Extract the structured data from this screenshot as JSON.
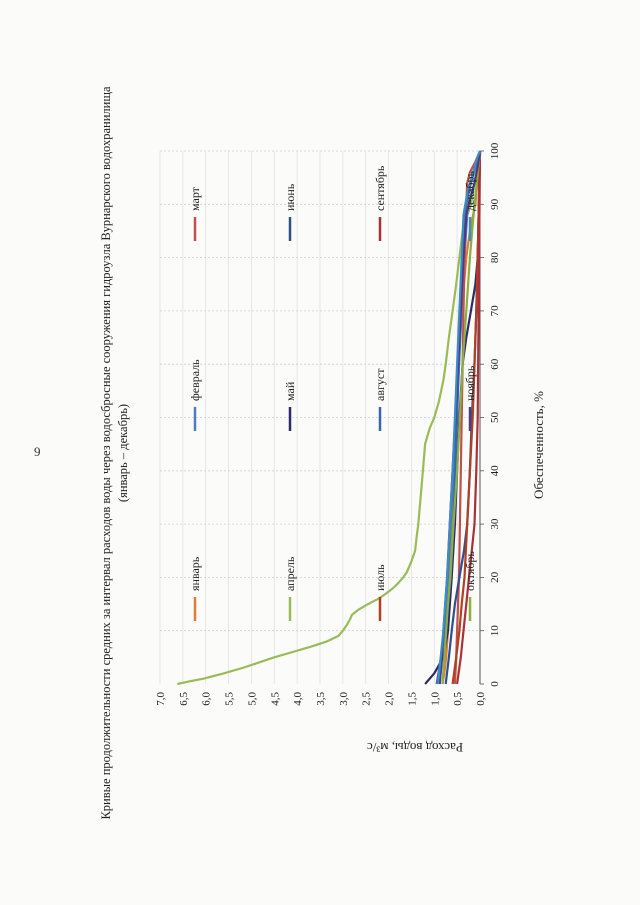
{
  "page": {
    "number": "9"
  },
  "chart_data": {
    "type": "line",
    "title": "Кривые продолжительности средних за интервал расходов воды через водосбросные сооружения гидроузла Вурнарского водохранилища",
    "subtitle": "(январь – декабрь)",
    "xlabel": "Обеспеченность, %",
    "ylabel": "Расход воды, м³/с",
    "xlim": [
      0,
      100
    ],
    "ylim": [
      0,
      7
    ],
    "x_ticks": [
      "0",
      "10",
      "20",
      "30",
      "40",
      "50",
      "60",
      "70",
      "80",
      "90",
      "100"
    ],
    "y_ticks": [
      "0,0",
      "0,5",
      "1,0",
      "1,5",
      "2,0",
      "2,5",
      "3,0",
      "3,5",
      "4,0",
      "4,5",
      "5,0",
      "5,5",
      "6,0",
      "6,5",
      "7,0"
    ],
    "grid": true,
    "legend_position": "top",
    "series": [
      {
        "name": "январь",
        "color": "#e07b39",
        "points": [
          [
            0,
            0.82
          ],
          [
            2,
            0.78
          ],
          [
            5,
            0.74
          ],
          [
            10,
            0.7
          ],
          [
            20,
            0.66
          ],
          [
            30,
            0.62
          ],
          [
            40,
            0.58
          ],
          [
            50,
            0.54
          ],
          [
            60,
            0.48
          ],
          [
            70,
            0.4
          ],
          [
            80,
            0.3
          ],
          [
            85,
            0.22
          ],
          [
            88,
            0.15
          ],
          [
            90,
            0.1
          ],
          [
            95,
            0.05
          ],
          [
            100,
            0
          ]
        ]
      },
      {
        "name": "февраль",
        "color": "#4a7ec2",
        "points": [
          [
            0,
            0.9
          ],
          [
            2,
            0.86
          ],
          [
            5,
            0.82
          ],
          [
            10,
            0.78
          ],
          [
            15,
            0.74
          ],
          [
            20,
            0.7
          ],
          [
            30,
            0.64
          ],
          [
            40,
            0.58
          ],
          [
            50,
            0.52
          ],
          [
            60,
            0.46
          ],
          [
            70,
            0.4
          ],
          [
            80,
            0.34
          ],
          [
            88,
            0.28
          ],
          [
            90,
            0.2
          ],
          [
            95,
            0.1
          ],
          [
            100,
            0
          ]
        ]
      },
      {
        "name": "март",
        "color": "#c0504d",
        "points": [
          [
            0,
            0.55
          ],
          [
            5,
            0.52
          ],
          [
            10,
            0.5
          ],
          [
            20,
            0.46
          ],
          [
            30,
            0.44
          ],
          [
            40,
            0.42
          ],
          [
            50,
            0.4
          ],
          [
            60,
            0.38
          ],
          [
            70,
            0.36
          ],
          [
            80,
            0.34
          ],
          [
            90,
            0.3
          ],
          [
            94,
            0.28
          ],
          [
            96,
            0.22
          ],
          [
            98,
            0.1
          ],
          [
            100,
            0
          ]
        ]
      },
      {
        "name": "апрель",
        "color": "#9bbb59",
        "points": [
          [
            0,
            6.62
          ],
          [
            0.5,
            6.35
          ],
          [
            1,
            6.05
          ],
          [
            2,
            5.6
          ],
          [
            3,
            5.2
          ],
          [
            4,
            4.85
          ],
          [
            5,
            4.5
          ],
          [
            6,
            4.1
          ],
          [
            7,
            3.7
          ],
          [
            8,
            3.35
          ],
          [
            9,
            3.1
          ],
          [
            10,
            3.0
          ],
          [
            11,
            2.92
          ],
          [
            12,
            2.85
          ],
          [
            13,
            2.8
          ],
          [
            14,
            2.65
          ],
          [
            15,
            2.45
          ],
          [
            16,
            2.22
          ],
          [
            17,
            2.05
          ],
          [
            18,
            1.9
          ],
          [
            19,
            1.78
          ],
          [
            20,
            1.68
          ],
          [
            21,
            1.6
          ],
          [
            23,
            1.5
          ],
          [
            25,
            1.42
          ],
          [
            28,
            1.38
          ],
          [
            30,
            1.35
          ],
          [
            35,
            1.3
          ],
          [
            40,
            1.25
          ],
          [
            45,
            1.2
          ],
          [
            48,
            1.1
          ],
          [
            50,
            1.0
          ],
          [
            53,
            0.9
          ],
          [
            57,
            0.8
          ],
          [
            60,
            0.75
          ],
          [
            65,
            0.68
          ],
          [
            70,
            0.6
          ],
          [
            75,
            0.52
          ],
          [
            80,
            0.45
          ],
          [
            85,
            0.38
          ],
          [
            88,
            0.3
          ],
          [
            90,
            0.2
          ],
          [
            95,
            0.1
          ],
          [
            100,
            0
          ]
        ]
      },
      {
        "name": "май",
        "color": "#2d2a6b",
        "points": [
          [
            0,
            1.2
          ],
          [
            2,
            1.0
          ],
          [
            5,
            0.8
          ],
          [
            10,
            0.7
          ],
          [
            20,
            0.62
          ],
          [
            30,
            0.55
          ],
          [
            40,
            0.5
          ],
          [
            50,
            0.45
          ],
          [
            60,
            0.38
          ],
          [
            65,
            0.3
          ],
          [
            70,
            0.2
          ],
          [
            75,
            0.1
          ],
          [
            80,
            0.05
          ],
          [
            100,
            0
          ]
        ]
      },
      {
        "name": "июнь",
        "color": "#2f4f8f",
        "points": [
          [
            0,
            0.75
          ],
          [
            5,
            0.68
          ],
          [
            10,
            0.62
          ],
          [
            15,
            0.55
          ],
          [
            20,
            0.45
          ],
          [
            25,
            0.35
          ],
          [
            30,
            0.28
          ],
          [
            40,
            0.22
          ],
          [
            50,
            0.18
          ],
          [
            60,
            0.12
          ],
          [
            70,
            0.08
          ],
          [
            80,
            0.05
          ],
          [
            100,
            0
          ]
        ]
      },
      {
        "name": "июль",
        "color": "#b04020",
        "points": [
          [
            0,
            0.6
          ],
          [
            5,
            0.52
          ],
          [
            10,
            0.45
          ],
          [
            15,
            0.4
          ],
          [
            20,
            0.34
          ],
          [
            30,
            0.28
          ],
          [
            40,
            0.22
          ],
          [
            50,
            0.16
          ],
          [
            60,
            0.12
          ],
          [
            70,
            0.08
          ],
          [
            80,
            0.05
          ],
          [
            100,
            0
          ]
        ]
      },
      {
        "name": "август",
        "color": "#3a64b0",
        "points": [
          [
            0,
            0.95
          ],
          [
            5,
            0.85
          ],
          [
            10,
            0.78
          ],
          [
            15,
            0.7
          ],
          [
            20,
            0.64
          ],
          [
            30,
            0.58
          ],
          [
            40,
            0.54
          ],
          [
            50,
            0.5
          ],
          [
            60,
            0.46
          ],
          [
            70,
            0.42
          ],
          [
            80,
            0.38
          ],
          [
            88,
            0.35
          ],
          [
            90,
            0.3
          ],
          [
            94,
            0.2
          ],
          [
            97,
            0.1
          ],
          [
            100,
            0
          ]
        ]
      },
      {
        "name": "сентябрь",
        "color": "#a8323a",
        "points": [
          [
            0,
            0.5
          ],
          [
            5,
            0.42
          ],
          [
            10,
            0.36
          ],
          [
            15,
            0.3
          ],
          [
            20,
            0.24
          ],
          [
            25,
            0.18
          ],
          [
            30,
            0.12
          ],
          [
            40,
            0.08
          ],
          [
            50,
            0.05
          ],
          [
            70,
            0.03
          ],
          [
            100,
            0
          ]
        ]
      },
      {
        "name": "октябрь",
        "color": "#8ab040",
        "points": [
          [
            0,
            0.82
          ],
          [
            5,
            0.78
          ],
          [
            10,
            0.74
          ],
          [
            15,
            0.7
          ],
          [
            20,
            0.65
          ],
          [
            30,
            0.58
          ],
          [
            40,
            0.5
          ],
          [
            50,
            0.44
          ],
          [
            60,
            0.38
          ],
          [
            70,
            0.3
          ],
          [
            80,
            0.22
          ],
          [
            90,
            0.12
          ],
          [
            95,
            0.06
          ],
          [
            100,
            0
          ]
        ]
      },
      {
        "name": "ноябрь",
        "color": "#4b3b82",
        "points": [
          [
            0,
            0.88
          ],
          [
            5,
            0.84
          ],
          [
            10,
            0.8
          ],
          [
            20,
            0.72
          ],
          [
            30,
            0.66
          ],
          [
            40,
            0.6
          ],
          [
            50,
            0.54
          ],
          [
            60,
            0.48
          ],
          [
            70,
            0.42
          ],
          [
            80,
            0.36
          ],
          [
            88,
            0.3
          ],
          [
            91,
            0.22
          ],
          [
            94,
            0.12
          ],
          [
            97,
            0.05
          ],
          [
            100,
            0
          ]
        ]
      },
      {
        "name": "декабрь",
        "color": "#3d8cc4",
        "points": [
          [
            0,
            0.92
          ],
          [
            5,
            0.86
          ],
          [
            10,
            0.8
          ],
          [
            20,
            0.72
          ],
          [
            30,
            0.66
          ],
          [
            40,
            0.6
          ],
          [
            50,
            0.55
          ],
          [
            60,
            0.5
          ],
          [
            70,
            0.45
          ],
          [
            80,
            0.4
          ],
          [
            88,
            0.36
          ],
          [
            92,
            0.28
          ],
          [
            96,
            0.15
          ],
          [
            99,
            0.05
          ],
          [
            100,
            0
          ]
        ]
      }
    ]
  }
}
